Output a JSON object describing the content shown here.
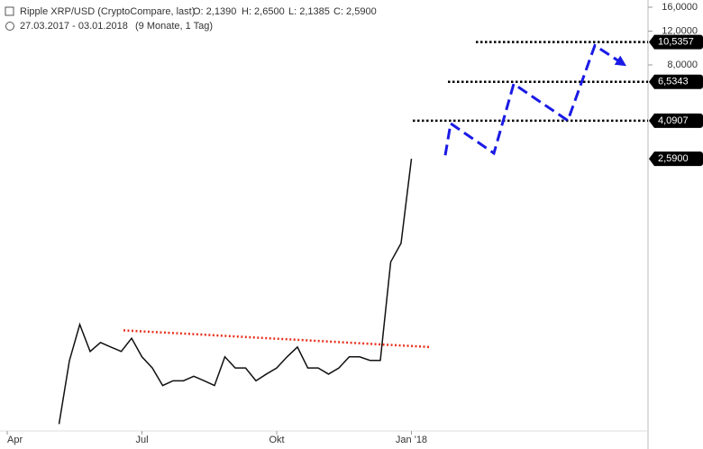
{
  "chart_data": {
    "type": "line",
    "title": "Ripple XRP/USD (CryptoCompare, last)",
    "ohlc_text": [
      "O: 2,1390",
      "H: 2,6500",
      "L: 2,1385",
      "C: 2,5900"
    ],
    "subtitle": "27.03.2017 - 03.01.2018",
    "period": "(9 Monate, 1 Tag)",
    "log_scale": true,
    "categories": [
      "Apr",
      null,
      null,
      null,
      null,
      null,
      null,
      null,
      null,
      null,
      null,
      null,
      null,
      "Jul",
      null,
      null,
      null,
      null,
      null,
      null,
      null,
      null,
      null,
      null,
      null,
      null,
      "Okt",
      null,
      null,
      null,
      null,
      null,
      null,
      null,
      null,
      null,
      null,
      null,
      null,
      "Jan '18"
    ],
    "series": [
      {
        "color": "#111111",
        "values": [
          null,
          null,
          null,
          null,
          null,
          0.107,
          0.229,
          0.354,
          0.256,
          0.285,
          0.27,
          0.256,
          0.3,
          0.24,
          0.21,
          0.17,
          0.18,
          0.18,
          0.19,
          0.18,
          0.17,
          0.24,
          0.21,
          0.21,
          0.18,
          0.195,
          0.21,
          0.24,
          0.27,
          0.21,
          0.21,
          0.195,
          0.21,
          0.24,
          0.24,
          0.23,
          0.23,
          0.75,
          0.94,
          2.59
        ]
      }
    ],
    "ylim": [
      0.0985,
      17.45
    ],
    "yticks": [
      {
        "value": 16,
        "label": "16,0000"
      },
      {
        "value": 12,
        "label": "12,0000"
      },
      {
        "value": 8,
        "label": "8,0000"
      }
    ],
    "levels": [
      {
        "value": 10.5357,
        "label": "10,5357"
      },
      {
        "value": 6.5343,
        "label": "6,5343"
      },
      {
        "value": 4.0907,
        "label": "4,0907"
      }
    ],
    "last_price": {
      "value": 2.59,
      "label": "2,5900"
    },
    "trendline": {
      "color": "#e8321e",
      "values": [
        0.33,
        0.27
      ]
    },
    "projection": {
      "color": "#1a1ae6",
      "values": [
        2.7,
        3.96,
        2.77,
        6.37,
        4.1,
        10.1,
        8.18
      ]
    }
  }
}
